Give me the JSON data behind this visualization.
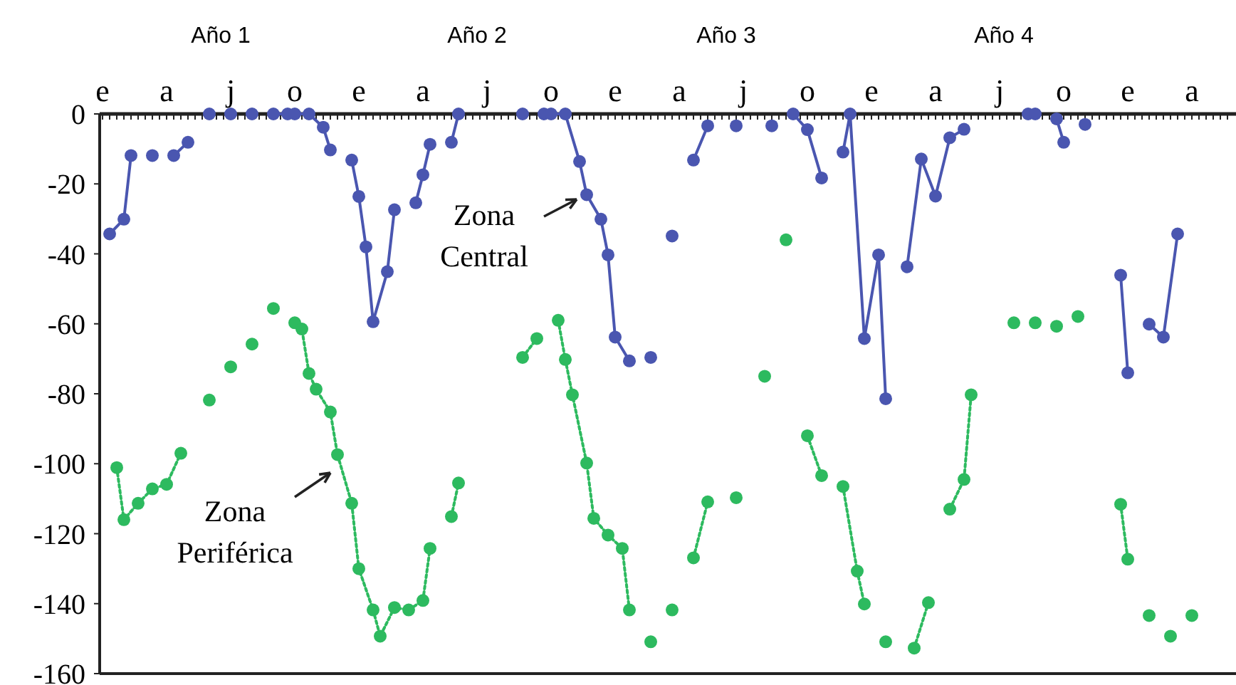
{
  "chart_data": {
    "type": "line",
    "marker": "circle",
    "grid": false,
    "ylim": [
      -160,
      0
    ],
    "yticks": [
      0,
      -20,
      -40,
      -60,
      -80,
      -100,
      -120,
      -140,
      -160
    ],
    "categories": [
      "e",
      null,
      null,
      null,
      null,
      null,
      null,
      null,
      null,
      "a",
      null,
      null,
      null,
      null,
      null,
      null,
      null,
      null,
      "j",
      null,
      null,
      null,
      null,
      null,
      null,
      null,
      null,
      "o",
      null,
      null,
      null,
      null,
      null,
      null,
      null,
      null,
      "e",
      null,
      null,
      null,
      null,
      null,
      null,
      null,
      null,
      "a",
      null,
      null,
      null,
      null,
      null,
      null,
      null,
      null,
      "j",
      null,
      null,
      null,
      null,
      null,
      null,
      null,
      null,
      "o",
      null,
      null,
      null,
      null,
      null,
      null,
      null,
      null,
      "e",
      null,
      null,
      null,
      null,
      null,
      null,
      null,
      null,
      "a",
      null,
      null,
      null,
      null,
      null,
      null,
      null,
      null,
      "j",
      null,
      null,
      null,
      null,
      null,
      null,
      null,
      null,
      "o",
      null,
      null,
      null,
      null,
      null,
      null,
      null,
      null,
      "e",
      null,
      null,
      null,
      null,
      null,
      null,
      null,
      null,
      "a",
      null,
      null,
      null,
      null,
      null,
      null,
      null,
      null,
      "j",
      null,
      null,
      null,
      null,
      null,
      null,
      null,
      null,
      "o",
      null,
      null,
      null,
      null,
      null,
      null,
      null,
      null,
      "e",
      null,
      null,
      null,
      null,
      null,
      null,
      null,
      null,
      "a",
      null,
      null,
      null,
      null,
      null
    ],
    "series": [
      {
        "color": "#4a56b0",
        "line_style": "solid",
        "values": [
          null,
          -34.3,
          null,
          -30.1,
          -11.9,
          null,
          null,
          -11.9,
          null,
          null,
          -11.9,
          null,
          -8.1,
          null,
          null,
          0,
          null,
          null,
          0,
          null,
          null,
          0,
          null,
          null,
          0,
          null,
          0,
          0,
          null,
          0,
          null,
          -3.8,
          -10.3,
          null,
          null,
          -13.2,
          -23.6,
          -38,
          -59.4,
          null,
          -45.1,
          -27.4,
          null,
          null,
          -25.4,
          -17.4,
          -8.7,
          null,
          null,
          -8.1,
          0,
          null,
          null,
          null,
          null,
          null,
          null,
          null,
          null,
          0,
          null,
          null,
          0,
          0,
          null,
          0,
          null,
          -13.6,
          -23.1,
          null,
          -30.1,
          -40.3,
          -63.8,
          null,
          -70.6,
          null,
          null,
          -69.6,
          null,
          null,
          -34.9,
          null,
          null,
          -13.2,
          null,
          -3.4,
          null,
          null,
          null,
          -3.4,
          null,
          null,
          null,
          null,
          -3.4,
          null,
          null,
          0,
          null,
          -4.5,
          null,
          -18.3,
          null,
          null,
          -10.9,
          0,
          null,
          -64.2,
          null,
          -40.3,
          -81.4,
          null,
          null,
          -43.7,
          null,
          -12.9,
          null,
          -23.5,
          null,
          -6.8,
          null,
          -4.4,
          null,
          null,
          null,
          null,
          null,
          null,
          null,
          null,
          0,
          0,
          null,
          null,
          -1.4,
          -8.1,
          null,
          null,
          -3,
          null,
          null,
          null,
          null,
          -46.1,
          -74,
          null,
          null,
          -60.1,
          null,
          -63.8,
          null,
          -34.3,
          null,
          null,
          null,
          null,
          null,
          null,
          null
        ]
      },
      {
        "color": "#2dba5f",
        "line_style": "dotted",
        "values": [
          null,
          null,
          -101.1,
          -116,
          null,
          -111.3,
          null,
          -107.2,
          null,
          -105.9,
          null,
          -97,
          null,
          null,
          null,
          -81.8,
          null,
          null,
          -72.3,
          null,
          null,
          -65.8,
          null,
          null,
          -55.6,
          null,
          null,
          -59.7,
          -61.5,
          -74.2,
          -78.7,
          null,
          -85.2,
          -97.4,
          null,
          -111.3,
          -130,
          null,
          -141.8,
          -149.3,
          null,
          -141.1,
          null,
          -141.8,
          null,
          -139.1,
          -124.2,
          null,
          null,
          -115.1,
          -105.5,
          null,
          null,
          null,
          null,
          null,
          null,
          null,
          null,
          -69.6,
          null,
          -64.2,
          null,
          null,
          -59,
          -70.2,
          -80.3,
          null,
          -99.8,
          -115.6,
          null,
          -120.4,
          null,
          -124.2,
          -141.8,
          null,
          null,
          -150.9,
          null,
          null,
          -141.8,
          null,
          null,
          -126.9,
          null,
          -110.9,
          null,
          null,
          null,
          -109.7,
          null,
          null,
          null,
          -75,
          null,
          null,
          -36,
          null,
          null,
          -92,
          null,
          -103.4,
          null,
          null,
          -106.5,
          null,
          -130.7,
          -140.1,
          null,
          null,
          -150.9,
          null,
          null,
          null,
          -152.7,
          null,
          -139.7,
          null,
          null,
          -113,
          null,
          -104.5,
          -80.3,
          null,
          null,
          null,
          null,
          null,
          -59.7,
          null,
          null,
          -59.7,
          null,
          null,
          -60.7,
          null,
          null,
          -57.9,
          null,
          null,
          null,
          null,
          null,
          -111.6,
          -127.3,
          null,
          null,
          -143.4,
          null,
          null,
          -149.3,
          null,
          null,
          -143.4,
          null,
          null,
          null,
          null,
          null
        ]
      }
    ],
    "annotations": [
      "Año 1",
      "Año 2",
      "Año 3",
      "Año 4",
      "Zona Central",
      "Zona Periférica"
    ]
  }
}
